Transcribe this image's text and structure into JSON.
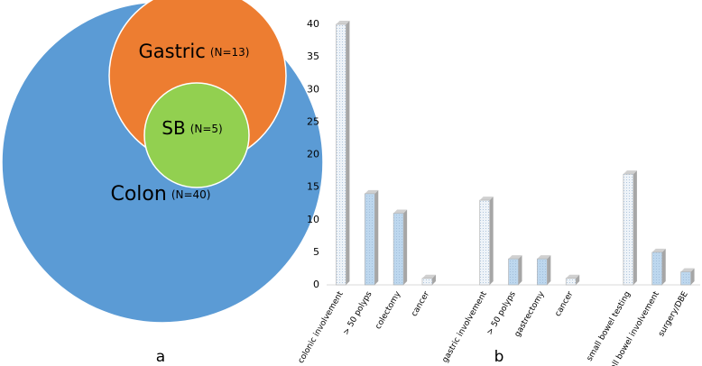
{
  "chart_data": [
    {
      "type": "venn",
      "sets": [
        {
          "name": "Colon",
          "label": "(N=40)",
          "size": 40,
          "color": "#5b9bd5"
        },
        {
          "name": "Gastric",
          "label": "(N=13)",
          "size": 13,
          "color": "#ed7d31"
        },
        {
          "name": "SB",
          "label": "(N=5)",
          "size": 5,
          "color": "#92d050"
        }
      ],
      "caption": "a"
    },
    {
      "type": "bar",
      "categories": [
        "colonic involvement",
        "> 50 polyps",
        "colectomy",
        "cancer",
        null,
        "gastric involvement",
        "> 50 polyps",
        "gastrectomy",
        "cancer",
        null,
        "small bowel testing",
        "small bowel involvement",
        "surgery/DBE"
      ],
      "values": [
        40,
        14,
        11,
        1,
        null,
        13,
        4,
        4,
        1,
        null,
        17,
        5,
        2
      ],
      "colors": [
        "#eef3f8",
        "#bdd7ee",
        "#bdd7ee",
        "#eef3f8",
        null,
        "#eef3f8",
        "#bdd7ee",
        "#bdd7ee",
        "#eef3f8",
        null,
        "#eef3f8",
        "#bdd7ee",
        "#bdd7ee"
      ],
      "ylim": [
        0,
        40
      ],
      "yticks": [
        0,
        5,
        10,
        15,
        20,
        25,
        30,
        35,
        40
      ],
      "grid": false,
      "caption": "b"
    }
  ]
}
